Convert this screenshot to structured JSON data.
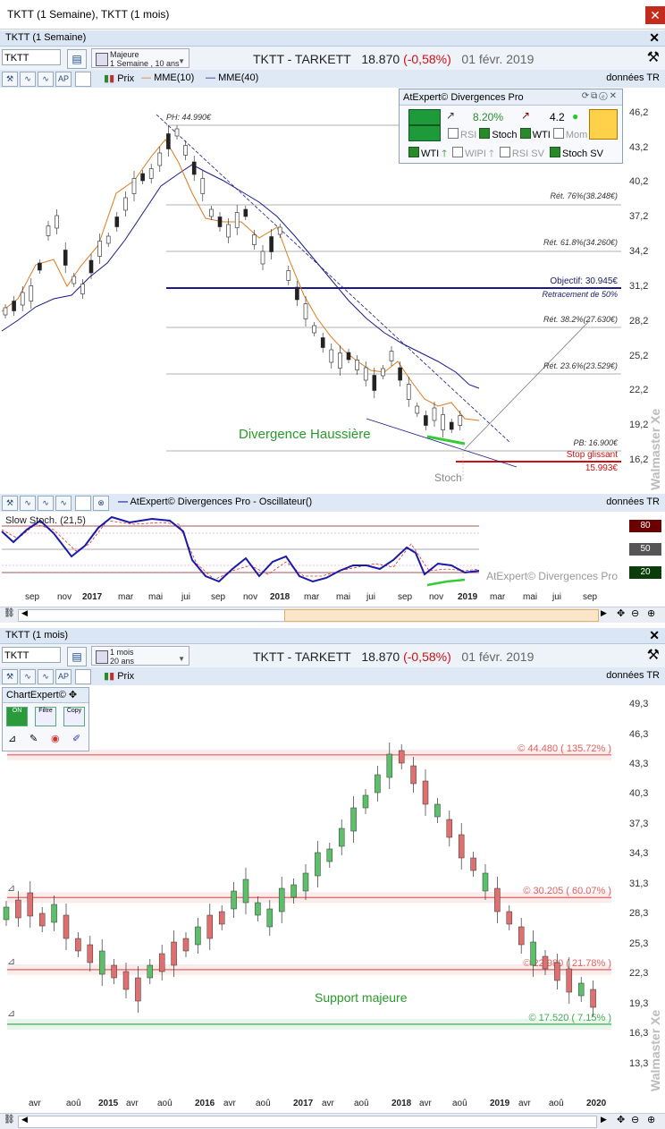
{
  "window": {
    "title": "TKTT (1 Semaine), TKTT (1 mois)",
    "close": "✕"
  },
  "top_panel": {
    "tab_title": "TKTT (1 Semaine)",
    "symbol": "TKTT",
    "period_line1": "Majeure",
    "period_line2": "1 Semaine , 10 ans",
    "quote_name": "TKTT - TARKETT",
    "quote_price": "18.870",
    "quote_change": "(-0,58%)",
    "quote_date": "01 févr. 2019",
    "legend": {
      "prix": "Prix",
      "mme10": "MME(10)",
      "mme40": "MME(40)"
    },
    "data_label": "données TR",
    "y_ticks": [
      "46,2",
      "43,2",
      "40,2",
      "37,2",
      "34,2",
      "31,2",
      "28,2",
      "25,2",
      "22,2",
      "19,2",
      "16,2"
    ],
    "annotations": {
      "ph": "PH: 44.990€",
      "fib76": "Rét. 76%(38.248€)",
      "fib618": "Rét. 61.8%(34.260€)",
      "objectif": "Objectif: 30.945€",
      "retr50": "Retracement de 50%",
      "fib382": "Rét. 38.2%(27.630€)",
      "fib236": "Rét. 23.6%(23.529€)",
      "pb": "PB: 16.900€",
      "stop": "Stop glissant",
      "stop_val": "15.993€",
      "divergence": "Divergence Haussière",
      "stoch": "Stoch"
    },
    "expert": {
      "title": "AtExpert© Divergences Pro",
      "value1": "8.20%",
      "value2": "4.2",
      "checks_row1": [
        "RSI",
        "Stoch",
        "WTI",
        "Mom"
      ],
      "checks_row1_on": [
        false,
        true,
        true,
        false
      ],
      "checks_row2": [
        "WTI",
        "WIPI",
        "RSI SV",
        "Stoch SV"
      ],
      "checks_row2_on": [
        true,
        false,
        false,
        true
      ]
    },
    "watermark": "Walmaster Xe"
  },
  "oscillator": {
    "legend": "AtExpert© Divergences Pro - Oscillateur()",
    "data_label": "données TR",
    "indicator": "Slow Stoch. (21,5)",
    "levels": [
      "80",
      "50",
      "20"
    ],
    "level_colors": [
      "#6b0000",
      "#555555",
      "#0b3d0b"
    ],
    "watermark": "AtExpert© Divergences Pro",
    "x_labels": [
      "sep",
      "nov",
      "2017",
      "mar",
      "mai",
      "jui",
      "sep",
      "nov",
      "2018",
      "mar",
      "mai",
      "jui",
      "sep",
      "nov",
      "2019",
      "mar",
      "mai",
      "jui",
      "sep"
    ],
    "x_bold": [
      false,
      false,
      true,
      false,
      false,
      false,
      false,
      false,
      true,
      false,
      false,
      false,
      false,
      false,
      true,
      false,
      false,
      false,
      false
    ]
  },
  "bottom_panel": {
    "tab_title": "TKTT (1 mois)",
    "symbol": "TKTT",
    "period_line1": "1 mois",
    "period_line2": "20 ans",
    "quote_name": "TKTT - TARKETT",
    "quote_price": "18.870",
    "quote_change": "(-0,58%)",
    "quote_date": "01 févr. 2019",
    "legend": {
      "prix": "Prix"
    },
    "data_label": "données TR",
    "chartexpert": {
      "title": "ChartExpert©",
      "btn1": "ON",
      "btn2": "Filtre",
      "btn3": "Copy"
    },
    "y_ticks": [
      "49,3",
      "46,3",
      "43,3",
      "40,3",
      "37,3",
      "34,3",
      "31,3",
      "28,3",
      "25,3",
      "22,3",
      "19,3",
      "16,3",
      "13,3"
    ],
    "levels": [
      {
        "label": "© 44.480 ( 135.72% )",
        "value": 44.48,
        "color": "#e06060"
      },
      {
        "label": "© 30.205 ( 60.07% )",
        "value": 30.205,
        "color": "#e06060"
      },
      {
        "label": "© 22.980 ( 21.78% )",
        "value": 22.98,
        "color": "#e06060"
      },
      {
        "label": "© 17.520 ( 7.15% )",
        "value": 17.52,
        "color": "#44aa55"
      }
    ],
    "support": "Support majeure",
    "x_labels": [
      "avr",
      "aoû",
      "2015",
      "avr",
      "aoû",
      "2016",
      "avr",
      "aoû",
      "2017",
      "avr",
      "aoû",
      "2018",
      "avr",
      "aoû",
      "2019",
      "avr",
      "aoû",
      "2020"
    ],
    "x_bold": [
      false,
      false,
      true,
      false,
      false,
      true,
      false,
      false,
      true,
      false,
      false,
      true,
      false,
      false,
      true,
      false,
      false,
      true
    ],
    "watermark": "Walmaster Xe"
  }
}
